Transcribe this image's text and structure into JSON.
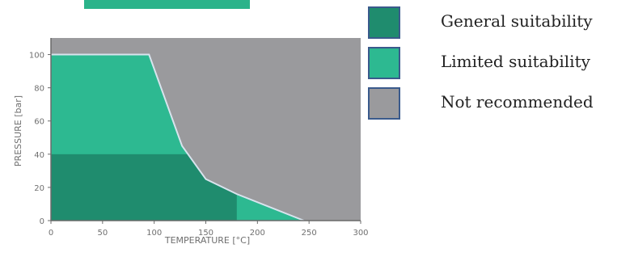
{
  "chart_data": {
    "type": "area",
    "title": "",
    "xlabel": "TEMPERATURE [°C]",
    "ylabel": "PRESSURE [bar]",
    "xlim": [
      0,
      300
    ],
    "ylim": [
      0,
      110
    ],
    "xticks": [
      0,
      50,
      100,
      150,
      200,
      250,
      300
    ],
    "yticks": [
      0,
      20,
      40,
      60,
      80,
      100
    ],
    "grid": false,
    "legend_position": "right",
    "regions": [
      {
        "name": "Not recommended",
        "color": "#9a9a9d",
        "polygon": [
          [
            0,
            0
          ],
          [
            300,
            0
          ],
          [
            300,
            110
          ],
          [
            0,
            110
          ]
        ]
      },
      {
        "name": "Limited suitability",
        "color": "#2db991",
        "polygon": [
          [
            0,
            0
          ],
          [
            0,
            100
          ],
          [
            95,
            100
          ],
          [
            127,
            45
          ],
          [
            150,
            25
          ],
          [
            180,
            16
          ],
          [
            245,
            0
          ]
        ]
      },
      {
        "name": "General suitability",
        "color": "#1f8c6e",
        "polygon": [
          [
            0,
            0
          ],
          [
            0,
            40
          ],
          [
            133,
            40
          ],
          [
            150,
            25
          ],
          [
            180,
            16
          ],
          [
            180,
            0
          ]
        ]
      }
    ],
    "boundary": {
      "name": "upper limit",
      "x": [
        0,
        95,
        127,
        150,
        180,
        245
      ],
      "y": [
        100,
        100,
        45,
        25,
        16,
        0
      ]
    }
  },
  "legend": {
    "items": [
      {
        "label": "General suitability",
        "color": "#1f8c6e"
      },
      {
        "label": "Limited suitability",
        "color": "#2db991"
      },
      {
        "label": "Not recommended",
        "color": "#9a9a9d"
      }
    ]
  },
  "colors": {
    "axis": "#6a6a6a",
    "tick_label": "#6f6f6f",
    "boundary_line": "#d8e4ee",
    "top_tab": "#2bb38a",
    "swatch_border": "#3a5a8c"
  }
}
